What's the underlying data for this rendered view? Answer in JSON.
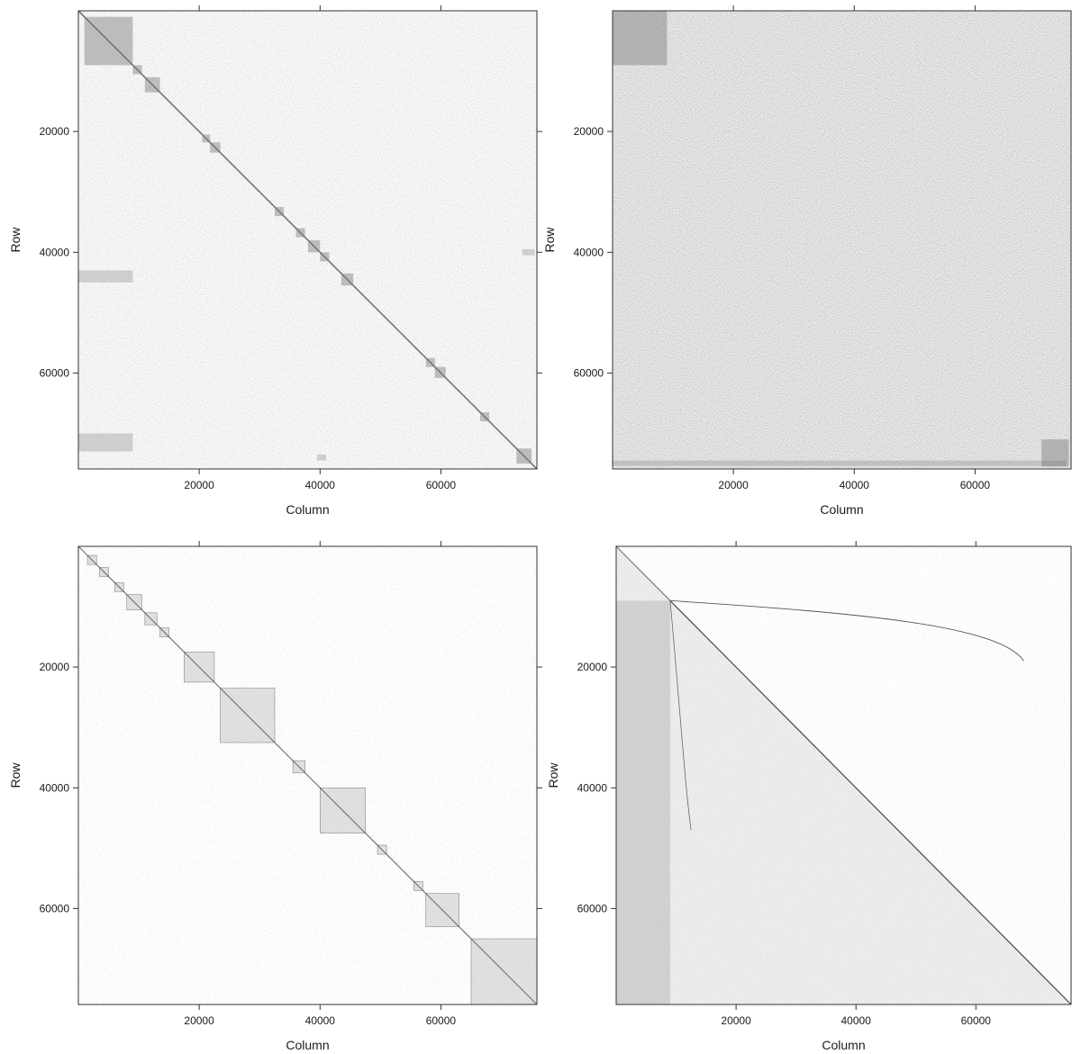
{
  "chart_data": [
    {
      "type": "heatmap",
      "xlabel": "Column",
      "ylabel": "Row",
      "xticks": [
        20000,
        40000,
        60000
      ],
      "yticks": [
        20000,
        40000,
        60000
      ],
      "xlim": [
        1,
        75888
      ],
      "ylim": [
        75888,
        1
      ],
      "pattern": "block-diagonal",
      "diagonal_blocks": [
        {
          "start": 1000,
          "end": 9000
        },
        {
          "start": 9000,
          "end": 10500
        },
        {
          "start": 11000,
          "end": 13500
        },
        {
          "start": 20500,
          "end": 21800
        },
        {
          "start": 21800,
          "end": 23500
        },
        {
          "start": 32500,
          "end": 34000
        },
        {
          "start": 36000,
          "end": 37500
        },
        {
          "start": 38000,
          "end": 40000
        },
        {
          "start": 40000,
          "end": 41500
        },
        {
          "start": 43500,
          "end": 45500
        },
        {
          "start": 57500,
          "end": 59000
        },
        {
          "start": 59000,
          "end": 60800
        },
        {
          "start": 66500,
          "end": 68000
        },
        {
          "start": 72500,
          "end": 75000
        }
      ],
      "off_diagonal_blocks": [
        {
          "rows": [
            43000,
            45000
          ],
          "cols": [
            0,
            9000
          ]
        },
        {
          "rows": [
            70000,
            73000
          ],
          "cols": [
            0,
            9000
          ]
        },
        {
          "rows": [
            73500,
            74500
          ],
          "cols": [
            39500,
            41000
          ]
        },
        {
          "rows": [
            39500,
            40500
          ],
          "cols": [
            73500,
            75500
          ]
        }
      ],
      "grid": false,
      "legend": "none"
    },
    {
      "type": "heatmap",
      "xlabel": "Column",
      "ylabel": "Row",
      "xticks": [
        20000,
        40000,
        60000
      ],
      "yticks": [
        20000,
        40000,
        60000
      ],
      "xlim": [
        1,
        75888
      ],
      "ylim": [
        75888,
        1
      ],
      "pattern": "uniform",
      "diagonal_blocks": [
        {
          "start": 0,
          "end": 9000
        },
        {
          "start": 71000,
          "end": 75500
        }
      ],
      "off_diagonal_blocks": [
        {
          "rows": [
            74500,
            75400
          ],
          "cols": [
            0,
            75000
          ]
        }
      ],
      "grid": false,
      "legend": "none"
    },
    {
      "type": "heatmap",
      "xlabel": "Column",
      "ylabel": "Row",
      "xticks": [
        20000,
        40000,
        60000
      ],
      "yticks": [
        20000,
        40000,
        60000
      ],
      "xlim": [
        1,
        75888
      ],
      "ylim": [
        75888,
        1
      ],
      "pattern": "banded-blocks",
      "diagonal_blocks": [
        {
          "start": 1500,
          "end": 3000
        },
        {
          "start": 3500,
          "end": 5000
        },
        {
          "start": 6000,
          "end": 7500
        },
        {
          "start": 8000,
          "end": 10500
        },
        {
          "start": 11000,
          "end": 13000
        },
        {
          "start": 13500,
          "end": 15000
        },
        {
          "start": 17500,
          "end": 22500
        },
        {
          "start": 23500,
          "end": 32500
        },
        {
          "start": 35500,
          "end": 37500
        },
        {
          "start": 40000,
          "end": 47500
        },
        {
          "start": 49500,
          "end": 51000
        },
        {
          "start": 55500,
          "end": 57000
        },
        {
          "start": 57500,
          "end": 63000
        },
        {
          "start": 65000,
          "end": 75888
        }
      ],
      "off_diagonal_blocks": [],
      "grid": false,
      "legend": "none"
    },
    {
      "type": "heatmap",
      "xlabel": "Column",
      "ylabel": "Row",
      "xticks": [
        20000,
        40000,
        60000
      ],
      "yticks": [
        20000,
        40000,
        60000
      ],
      "xlim": [
        1,
        75888
      ],
      "ylim": [
        75888,
        1
      ],
      "pattern": "lower-band",
      "diagonal_blocks": [],
      "off_diagonal_blocks": [
        {
          "rows": [
            9000,
            75888
          ],
          "cols": [
            0,
            9000
          ]
        }
      ],
      "grid": false,
      "legend": "none"
    }
  ]
}
